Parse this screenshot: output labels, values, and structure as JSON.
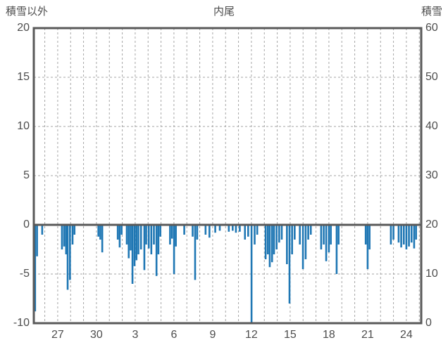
{
  "titles": {
    "left": "積雪以外",
    "center": "内尾",
    "right": "積雪"
  },
  "colors": {
    "bar": "#1f77b4",
    "frame": "#595959",
    "grid": "#a6a6a6",
    "text": "#4d4d4d"
  },
  "chart_data": {
    "type": "bar",
    "title": "内尾",
    "left_axis": {
      "label": "積雪以外",
      "min": -10,
      "max": 20,
      "ticks": [
        20,
        15,
        10,
        5,
        0,
        -5,
        -10
      ]
    },
    "right_axis": {
      "label": "積雪",
      "min": 0,
      "max": 60,
      "ticks": [
        60,
        50,
        40,
        30,
        20,
        10,
        0
      ]
    },
    "x_axis": {
      "tick_labels": [
        "27",
        "30",
        "3",
        "6",
        "9",
        "12",
        "15",
        "18",
        "21",
        "24"
      ],
      "tick_interval_days": 3,
      "first_tick_offset_days": 1.85,
      "span_days": 30,
      "grid": true
    },
    "grid": true,
    "legend": "none",
    "bars_note": "pairs of [day-offset from left edge of axis, value on left axis]",
    "bars": [
      [
        0.1,
        -8.8
      ],
      [
        0.25,
        -3.2
      ],
      [
        0.65,
        -1.0
      ],
      [
        2.18,
        -2.5
      ],
      [
        2.35,
        -2.2
      ],
      [
        2.5,
        -3.0
      ],
      [
        2.62,
        -6.6
      ],
      [
        2.8,
        -5.6
      ],
      [
        3.0,
        -2.0
      ],
      [
        3.15,
        -1.0
      ],
      [
        5.0,
        -1.2
      ],
      [
        5.15,
        -1.5
      ],
      [
        5.3,
        -2.8
      ],
      [
        6.5,
        -1.5
      ],
      [
        6.65,
        -2.3
      ],
      [
        6.8,
        -1.0
      ],
      [
        7.2,
        -2.0
      ],
      [
        7.35,
        -3.4
      ],
      [
        7.5,
        -2.6
      ],
      [
        7.64,
        -6.0
      ],
      [
        7.8,
        -4.2
      ],
      [
        7.95,
        -3.6
      ],
      [
        8.1,
        -3.0
      ],
      [
        8.3,
        -2.5
      ],
      [
        8.56,
        -4.6
      ],
      [
        8.7,
        -2.0
      ],
      [
        8.9,
        -2.4
      ],
      [
        9.1,
        -3.0
      ],
      [
        9.3,
        -2.0
      ],
      [
        9.5,
        -5.2
      ],
      [
        9.65,
        -3.0
      ],
      [
        9.8,
        -1.2
      ],
      [
        10.55,
        -2.0
      ],
      [
        10.7,
        -1.4
      ],
      [
        10.86,
        -5.0
      ],
      [
        11.0,
        -2.2
      ],
      [
        11.65,
        -1.0
      ],
      [
        12.3,
        -1.2
      ],
      [
        12.49,
        -5.6
      ],
      [
        12.65,
        -1.5
      ],
      [
        13.3,
        -1.0
      ],
      [
        13.6,
        -1.3
      ],
      [
        14.05,
        -0.8
      ],
      [
        14.4,
        -0.6
      ],
      [
        15.1,
        -0.7
      ],
      [
        15.4,
        -0.6
      ],
      [
        15.65,
        -0.8
      ],
      [
        15.95,
        -0.7
      ],
      [
        16.35,
        -1.5
      ],
      [
        16.6,
        -1.2
      ],
      [
        16.86,
        -10.0
      ],
      [
        17.1,
        -2.0
      ],
      [
        17.3,
        -1.0
      ],
      [
        17.95,
        -3.5
      ],
      [
        18.12,
        -3.0
      ],
      [
        18.27,
        -4.3
      ],
      [
        18.45,
        -3.8
      ],
      [
        18.6,
        -3.0
      ],
      [
        18.8,
        -2.5
      ],
      [
        19.0,
        -1.8
      ],
      [
        19.2,
        -1.5
      ],
      [
        19.6,
        -4.0
      ],
      [
        19.8,
        -8.0
      ],
      [
        20.0,
        -3.0
      ],
      [
        20.2,
        -1.5
      ],
      [
        20.6,
        -2.0
      ],
      [
        20.84,
        -4.5
      ],
      [
        21.05,
        -3.5
      ],
      [
        21.25,
        -1.5
      ],
      [
        21.45,
        -1.0
      ],
      [
        22.25,
        -2.5
      ],
      [
        22.45,
        -2.0
      ],
      [
        22.64,
        -3.7
      ],
      [
        22.85,
        -2.8
      ],
      [
        23.0,
        -2.0
      ],
      [
        23.45,
        -5.0
      ],
      [
        23.6,
        -2.0
      ],
      [
        25.7,
        -2.0
      ],
      [
        25.85,
        -4.5
      ],
      [
        26.0,
        -2.5
      ],
      [
        27.65,
        -2.0
      ],
      [
        27.85,
        -1.5
      ],
      [
        28.25,
        -1.8
      ],
      [
        28.45,
        -2.3
      ],
      [
        28.65,
        -2.0
      ],
      [
        28.85,
        -2.5
      ],
      [
        29.05,
        -2.2
      ],
      [
        29.25,
        -1.8
      ],
      [
        29.45,
        -2.4
      ],
      [
        29.6,
        -1.5
      ]
    ]
  }
}
